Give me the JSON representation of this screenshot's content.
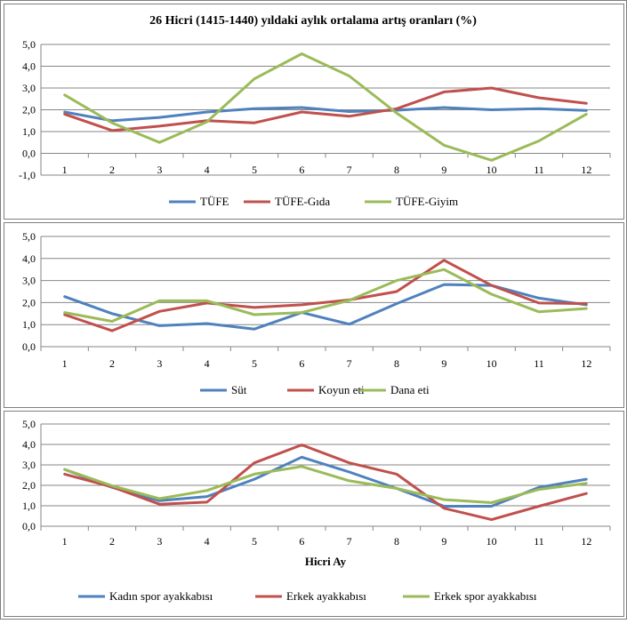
{
  "colors": {
    "blue": "#4f81bd",
    "red": "#c0504d",
    "green": "#9bbb59",
    "grid": "#868686",
    "border": "#7f7f7f"
  },
  "chart_data": [
    {
      "type": "line",
      "title": "26 Hicri (1415-1440) yıldaki aylık ortalama artış oranları (%)",
      "xlabel": "",
      "ylabel": "",
      "ylim": [
        -1.0,
        5.0
      ],
      "yticks": [
        "-1,0",
        "0,0",
        "1,0",
        "2,0",
        "3,0",
        "4,0",
        "5,0"
      ],
      "categories": [
        "1",
        "2",
        "3",
        "4",
        "5",
        "6",
        "7",
        "8",
        "9",
        "10",
        "11",
        "12"
      ],
      "grid": true,
      "legend": "bottom",
      "series": [
        {
          "name": "TÜFE",
          "color": "#4f81bd",
          "values": [
            1.9,
            1.5,
            1.65,
            1.9,
            2.05,
            2.1,
            1.92,
            1.98,
            2.1,
            2.0,
            2.05,
            1.97
          ]
        },
        {
          "name": "TÜFE-Gıda",
          "color": "#c0504d",
          "values": [
            1.8,
            1.05,
            1.25,
            1.5,
            1.4,
            1.9,
            1.7,
            2.05,
            2.82,
            3.0,
            2.55,
            2.3
          ]
        },
        {
          "name": "TÜFE-Giyim",
          "color": "#9bbb59",
          "values": [
            2.68,
            1.4,
            0.5,
            1.45,
            3.42,
            4.57,
            3.55,
            1.85,
            0.37,
            -0.32,
            0.57,
            1.8
          ]
        }
      ]
    },
    {
      "type": "line",
      "title": "",
      "xlabel": "",
      "ylabel": "",
      "ylim": [
        0.0,
        5.0
      ],
      "yticks": [
        "0,0",
        "1,0",
        "2,0",
        "3,0",
        "4,0",
        "5,0"
      ],
      "categories": [
        "1",
        "2",
        "3",
        "4",
        "5",
        "6",
        "7",
        "8",
        "9",
        "10",
        "11",
        "12"
      ],
      "grid": true,
      "legend": "bottom",
      "series": [
        {
          "name": "Süt",
          "color": "#4f81bd",
          "values": [
            2.27,
            1.5,
            0.95,
            1.05,
            0.8,
            1.55,
            1.02,
            1.95,
            2.82,
            2.78,
            2.2,
            1.9
          ]
        },
        {
          "name": "Koyun eti",
          "color": "#c0504d",
          "values": [
            1.45,
            0.72,
            1.6,
            1.98,
            1.78,
            1.9,
            2.12,
            2.5,
            3.92,
            2.78,
            1.98,
            1.95
          ]
        },
        {
          "name": "Dana eti",
          "color": "#9bbb59",
          "values": [
            1.55,
            1.15,
            2.08,
            2.08,
            1.45,
            1.55,
            2.1,
            3.0,
            3.5,
            2.38,
            1.58,
            1.73
          ]
        }
      ]
    },
    {
      "type": "line",
      "title": "",
      "xlabel": "Hicri Ay",
      "ylabel": "",
      "ylim": [
        0.0,
        5.0
      ],
      "yticks": [
        "0,0",
        "1,0",
        "2,0",
        "3,0",
        "4,0",
        "5,0"
      ],
      "categories": [
        "1",
        "2",
        "3",
        "4",
        "5",
        "6",
        "7",
        "8",
        "9",
        "10",
        "11",
        "12"
      ],
      "grid": true,
      "legend": "bottom",
      "series": [
        {
          "name": "Kadın spor ayakkabısı",
          "color": "#4f81bd",
          "values": [
            2.78,
            1.9,
            1.25,
            1.45,
            2.3,
            3.38,
            2.65,
            1.85,
            0.98,
            0.98,
            1.9,
            2.3
          ]
        },
        {
          "name": "Erkek ayakkabısı",
          "color": "#c0504d",
          "values": [
            2.55,
            1.92,
            1.08,
            1.18,
            3.1,
            3.98,
            3.1,
            2.55,
            0.88,
            0.32,
            0.98,
            1.6
          ]
        },
        {
          "name": "Erkek spor ayakkabısı",
          "color": "#9bbb59",
          "values": [
            2.78,
            1.98,
            1.35,
            1.75,
            2.55,
            2.92,
            2.22,
            1.85,
            1.3,
            1.15,
            1.8,
            2.1
          ]
        }
      ]
    }
  ]
}
